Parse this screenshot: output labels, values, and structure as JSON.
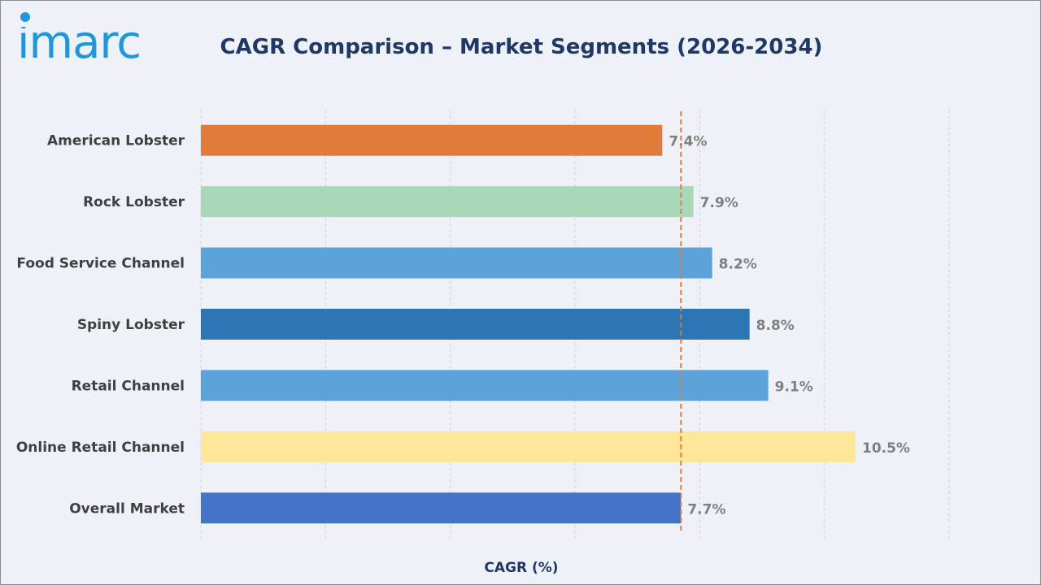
{
  "logo": {
    "text": "imarc"
  },
  "chart_data": {
    "type": "bar",
    "orientation": "horizontal",
    "title": "CAGR Comparison – Market Segments (2026-2034)",
    "xlabel": "CAGR (%)",
    "ylabel": "",
    "xlim": [
      0,
      12
    ],
    "grid": "vertical-dashed",
    "legend": "none",
    "categories": [
      "American Lobster",
      "Rock Lobster",
      "Food Service Channel",
      "Spiny Lobster",
      "Retail Channel",
      "Online Retail Channel",
      "Overall Market"
    ],
    "values": [
      7.4,
      7.9,
      8.2,
      8.8,
      9.1,
      10.5,
      7.7
    ],
    "value_labels": [
      "7.4%",
      "7.9%",
      "8.2%",
      "8.8%",
      "9.1%",
      "10.5%",
      "7.7%"
    ],
    "colors": [
      "#e07b39",
      "#a9d8b8",
      "#5ca3d9",
      "#2e75b6",
      "#5ca3d9",
      "#ffe699",
      "#4472c4"
    ],
    "reference_line": {
      "value": 7.7,
      "color": "#e07b39",
      "style": "dashed"
    }
  }
}
